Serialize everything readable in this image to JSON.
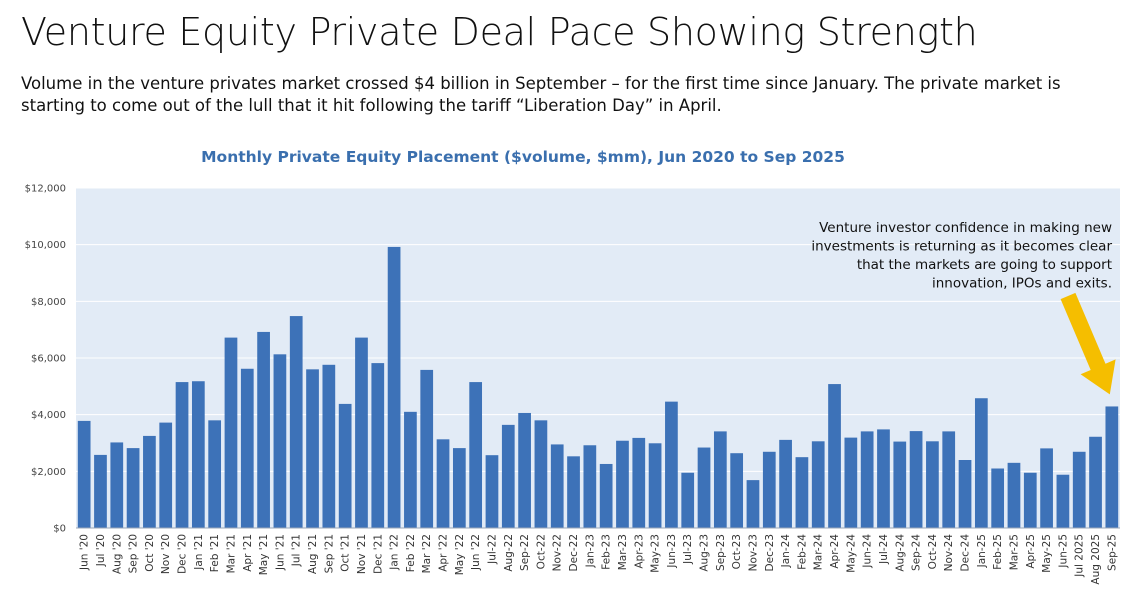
{
  "header": {
    "title": "Venture Equity Private Deal Pace Showing Strength",
    "subtitle": "Volume in the venture privates market crossed $4 billion in September – for the first time since January. The private market is starting to come out of the lull that it hit following the tariff “Liberation Day” in April."
  },
  "colors": {
    "bar": "#3d72b8",
    "plot_bg": "#e2ebf6",
    "gridline": "#ffffff",
    "arrow": "#f5be00",
    "title_accent": "#3a6fae"
  },
  "chart_data": {
    "type": "bar",
    "title": "Monthly Private Equity Placement ($volume, $mm), Jun 2020 to Sep 2025",
    "xlabel": "",
    "ylabel": "",
    "ylim": [
      0,
      12000
    ],
    "yticks": [
      0,
      2000,
      4000,
      6000,
      8000,
      10000,
      12000
    ],
    "ytick_labels": [
      "$0",
      "$2,000",
      "$4,000",
      "$6,000",
      "$8,000",
      "$10,000",
      "$12,000"
    ],
    "grid": true,
    "categories": [
      "Jun '20",
      "Jul '20",
      "Aug '20",
      "Sep '20",
      "Oct '20",
      "Nov '20",
      "Dec '20",
      "Jan '21",
      "Feb '21",
      "Mar '21",
      "Apr '21",
      "May '21",
      "Jun '21",
      "Jul '21",
      "Aug '21",
      "Sep '21",
      "Oct '21",
      "Nov '21",
      "Dec '21",
      "Jan '22",
      "Feb '22",
      "Mar '22",
      "Apr '22",
      "May '22",
      "Jun '22",
      "Jul-22",
      "Aug-22",
      "Sep-22",
      "Oct-22",
      "Nov-22",
      "Dec-22",
      "Jan-23",
      "Feb-23",
      "Mar-23",
      "Apr-23",
      "May-23",
      "Jun-23",
      "Jul-23",
      "Aug-23",
      "Sep-23",
      "Oct-23",
      "Nov-23",
      "Dec-23",
      "Jan-24",
      "Feb-24",
      "Mar-24",
      "Apr-24",
      "May-24",
      "Jun-24",
      "Jul-24",
      "Aug-24",
      "Sep-24",
      "Oct-24",
      "Nov-24",
      "Dec-24",
      "Jan-25",
      "Feb-25",
      "Mar-25",
      "Apr-25",
      "May-25",
      "Jun-25",
      "Jul 2025",
      "Aug 2025",
      "Sep-25"
    ],
    "values": [
      3780,
      2580,
      3020,
      2820,
      3250,
      3720,
      5150,
      5180,
      3800,
      6720,
      5620,
      6920,
      6130,
      7480,
      5600,
      5760,
      4380,
      6720,
      5820,
      9920,
      4100,
      5580,
      3130,
      2820,
      5150,
      2570,
      3640,
      4060,
      3800,
      2950,
      2530,
      2920,
      2260,
      3080,
      3180,
      2990,
      4460,
      1950,
      2840,
      3410,
      2640,
      1690,
      2690,
      3110,
      2500,
      3060,
      5080,
      3190,
      3410,
      3480,
      3050,
      3420,
      3060,
      3410,
      2400,
      4580,
      2100,
      2300,
      1950,
      2810,
      1880,
      2690,
      3220,
      4290
    ],
    "annotations": [
      {
        "lines": [
          "Venture investor confidence in making new",
          "investments is returning as it becomes clear",
          "that the markets are going to support",
          "innovation, IPOs and exits."
        ],
        "points_to": "Sep-25"
      }
    ]
  }
}
